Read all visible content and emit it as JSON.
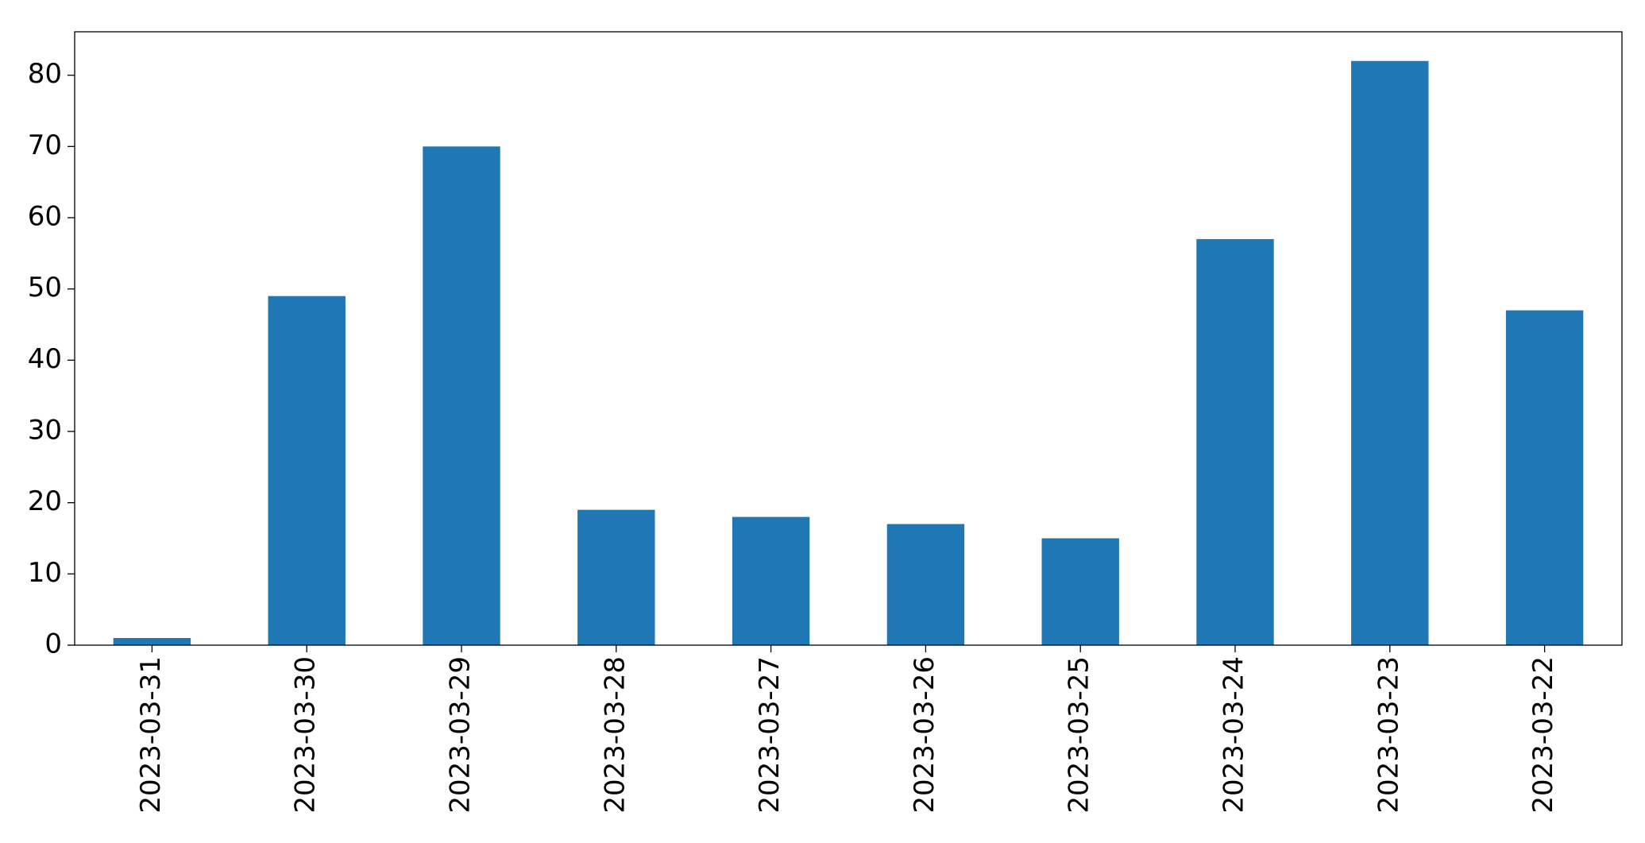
{
  "chart_data": {
    "type": "bar",
    "categories": [
      "2023-03-31",
      "2023-03-30",
      "2023-03-29",
      "2023-03-28",
      "2023-03-27",
      "2023-03-26",
      "2023-03-25",
      "2023-03-24",
      "2023-03-23",
      "2023-03-22"
    ],
    "values": [
      1,
      49,
      70,
      19,
      18,
      17,
      15,
      57,
      82,
      47
    ],
    "color": "#1f77b4",
    "ylim": [
      0,
      86.1
    ],
    "yticks": [
      0,
      10,
      20,
      30,
      40,
      50,
      60,
      70,
      80
    ],
    "grid": false
  }
}
